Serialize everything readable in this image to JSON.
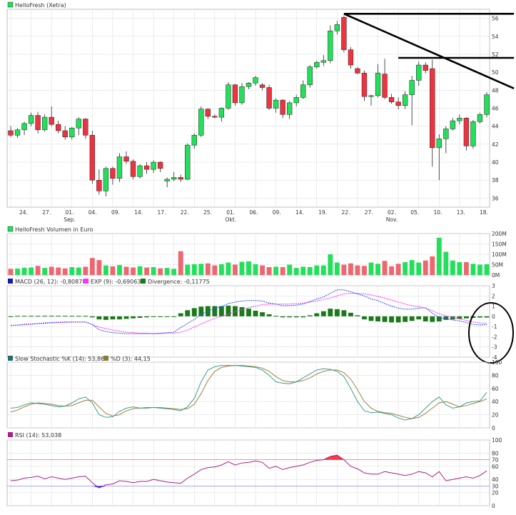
{
  "colors": {
    "up": "#22e05a",
    "down": "#ee3340",
    "candle_outline": "#222222",
    "macd": "#3355ff",
    "ema": "#ff33ff",
    "divergence": "#1a7a1a",
    "stoch_k": "#3aa08c",
    "stoch_d": "#a08040",
    "rsi": "#aa2288",
    "rsi_band_upper": "#ff6666",
    "rsi_band_lower": "#8888ff",
    "grid": "#d8d8d8"
  },
  "chart_data": [
    {
      "type": "candlestick",
      "title": "HelloFresh (Xetra)",
      "legend_icon_color": "#22e05a",
      "ylim": [
        35,
        57
      ],
      "yticks": [
        36,
        38,
        40,
        42,
        44,
        46,
        48,
        50,
        52,
        54,
        56
      ],
      "xticks": [
        "24.",
        "27.",
        "01.",
        "04.",
        "09.",
        "14.",
        "17.",
        "22.",
        "25.",
        "01.",
        "06.",
        "09.",
        "14.",
        "19.",
        "22.",
        "27.",
        "02.",
        "05.",
        "10.",
        "13.",
        "18."
      ],
      "month_labels": [
        {
          "label": "Sep.",
          "under_tick": 2
        },
        {
          "label": "Okt.",
          "under_tick": 9
        },
        {
          "label": "Nov.",
          "under_tick": 16
        }
      ],
      "candles": [
        [
          43.5,
          44.0,
          42.8,
          43.0
        ],
        [
          43.0,
          43.8,
          42.7,
          43.6
        ],
        [
          43.6,
          44.5,
          43.0,
          44.3
        ],
        [
          44.3,
          45.5,
          44.0,
          45.2
        ],
        [
          45.2,
          45.6,
          43.2,
          43.6
        ],
        [
          43.6,
          45.3,
          43.4,
          45.0
        ],
        [
          45.0,
          46.2,
          44.0,
          44.2
        ],
        [
          44.2,
          44.6,
          43.2,
          43.5
        ],
        [
          43.5,
          44.0,
          42.5,
          42.8
        ],
        [
          42.8,
          43.9,
          42.5,
          43.8
        ],
        [
          43.8,
          45.0,
          43.0,
          44.8
        ],
        [
          44.8,
          44.9,
          42.6,
          43.0
        ],
        [
          43.0,
          43.5,
          37.6,
          38.0
        ],
        [
          38.0,
          39.2,
          36.4,
          36.8
        ],
        [
          36.8,
          39.5,
          36.2,
          39.3
        ],
        [
          39.3,
          39.5,
          37.5,
          38.2
        ],
        [
          38.2,
          41.0,
          37.8,
          40.6
        ],
        [
          40.6,
          41.2,
          39.8,
          40.1
        ],
        [
          40.1,
          40.3,
          38.1,
          38.4
        ],
        [
          38.4,
          39.8,
          38.2,
          39.6
        ],
        [
          39.6,
          40.0,
          38.7,
          39.2
        ],
        [
          39.2,
          40.2,
          38.8,
          40.0
        ],
        [
          40.0,
          40.1,
          38.9,
          39.3
        ],
        [
          37.9,
          38.3,
          37.2,
          38.1
        ],
        [
          38.1,
          38.9,
          37.9,
          38.3
        ],
        [
          38.3,
          38.6,
          37.8,
          38.1
        ],
        [
          38.1,
          42.1,
          38.0,
          41.9
        ],
        [
          41.9,
          43.2,
          41.5,
          43.0
        ],
        [
          43.0,
          46.2,
          42.8,
          45.9
        ],
        [
          45.9,
          46.0,
          44.8,
          45.1
        ],
        [
          45.1,
          45.3,
          44.9,
          45.0
        ],
        [
          45.0,
          46.1,
          44.5,
          46.0
        ],
        [
          46.0,
          48.9,
          45.8,
          48.6
        ],
        [
          48.6,
          48.7,
          46.3,
          46.6
        ],
        [
          46.6,
          48.8,
          46.4,
          48.4
        ],
        [
          48.4,
          48.9,
          48.1,
          48.8
        ],
        [
          48.8,
          49.6,
          48.5,
          49.4
        ],
        [
          48.6,
          48.8,
          48.0,
          48.3
        ],
        [
          48.3,
          48.6,
          45.8,
          46.0
        ],
        [
          46.0,
          47.1,
          45.5,
          46.9
        ],
        [
          46.9,
          47.0,
          44.9,
          45.3
        ],
        [
          45.3,
          46.8,
          44.8,
          46.6
        ],
        [
          46.6,
          47.5,
          46.2,
          47.2
        ],
        [
          47.2,
          49.1,
          47.0,
          48.6
        ],
        [
          48.6,
          50.8,
          48.3,
          50.6
        ],
        [
          50.6,
          51.3,
          50.4,
          51.1
        ],
        [
          51.1,
          51.9,
          50.7,
          51.3
        ],
        [
          51.3,
          55.2,
          51.0,
          54.6
        ],
        [
          54.6,
          55.7,
          54.2,
          55.3
        ],
        [
          56.1,
          56.3,
          52.2,
          52.5
        ],
        [
          52.5,
          52.8,
          50.4,
          50.8
        ],
        [
          50.4,
          50.6,
          49.8,
          49.9
        ],
        [
          49.9,
          50.2,
          46.8,
          47.3
        ],
        [
          47.3,
          47.5,
          46.3,
          47.4
        ],
        [
          47.4,
          50.9,
          47.2,
          49.9
        ],
        [
          49.8,
          51.5,
          47.0,
          47.2
        ],
        [
          47.2,
          47.6,
          46.5,
          46.7
        ],
        [
          46.7,
          47.2,
          45.9,
          46.3
        ],
        [
          46.3,
          47.9,
          45.9,
          47.5
        ],
        [
          47.5,
          49.6,
          44.1,
          49.1
        ],
        [
          49.1,
          51.2,
          48.5,
          50.8
        ],
        [
          50.8,
          51.1,
          49.9,
          50.2
        ],
        [
          50.4,
          51.4,
          39.5,
          41.6
        ],
        [
          41.6,
          43.1,
          38.0,
          42.6
        ],
        [
          42.6,
          44.0,
          41.0,
          43.7
        ],
        [
          43.7,
          44.9,
          43.5,
          44.6
        ],
        [
          44.6,
          45.3,
          44.2,
          44.9
        ],
        [
          44.9,
          45.0,
          41.3,
          41.8
        ],
        [
          41.8,
          44.7,
          41.5,
          44.5
        ],
        [
          44.5,
          45.5,
          44.3,
          45.3
        ],
        [
          45.3,
          47.8,
          45.0,
          47.5
        ]
      ],
      "trend_lines": [
        {
          "from": [
            49,
            56.5
          ],
          "to": [
            74,
            56.5
          ]
        },
        {
          "from": [
            57,
            51.6
          ],
          "to": [
            74,
            51.6
          ]
        },
        {
          "from": [
            49,
            56.5
          ],
          "to": [
            74,
            48.2
          ]
        }
      ]
    },
    {
      "type": "bar",
      "title": "HelloFresh Volumen in Euro",
      "legend_icon_color": "#22e05a",
      "ylim": [
        0,
        200
      ],
      "yticks": [
        0,
        50,
        100,
        150,
        200
      ],
      "ytick_labels": [
        "0M",
        "50M",
        "100M",
        "150M",
        "200M"
      ],
      "values": [
        30,
        31,
        35,
        36,
        44,
        34,
        40,
        36,
        32,
        38,
        36,
        40,
        82,
        72,
        46,
        42,
        48,
        40,
        36,
        42,
        36,
        38,
        32,
        34,
        30,
        115,
        50,
        52,
        54,
        56,
        46,
        52,
        60,
        50,
        64,
        66,
        52,
        46,
        38,
        40,
        38,
        50,
        34,
        40,
        38,
        46,
        46,
        100,
        60,
        50,
        56,
        46,
        44,
        60,
        54,
        68,
        42,
        54,
        62,
        72,
        60,
        70,
        90,
        180,
        112,
        70,
        62,
        62,
        54,
        50,
        52
      ]
    },
    {
      "type": "line",
      "title_parts": [
        "MACD (26, 12): -0,80878",
        "EXP (9): -0,69063",
        "Divergence: -0,11775"
      ],
      "ylim": [
        -4,
        3
      ],
      "yticks": [
        3,
        2,
        1,
        0,
        -1,
        -2,
        -3,
        -4
      ],
      "series": [
        {
          "name": "MACD (26, 12): -0,80878",
          "values": [
            -0.9,
            -0.85,
            -0.78,
            -0.75,
            -0.7,
            -0.65,
            -0.6,
            -0.58,
            -0.55,
            -0.55,
            -0.55,
            -0.55,
            -0.8,
            -1.3,
            -1.5,
            -1.6,
            -1.65,
            -1.7,
            -1.7,
            -1.7,
            -1.7,
            -1.7,
            -1.65,
            -1.6,
            -1.55,
            -1.1,
            -0.7,
            -0.3,
            0.2,
            0.5,
            0.75,
            0.95,
            1.25,
            1.4,
            1.5,
            1.55,
            1.55,
            1.5,
            1.3,
            1.2,
            1.05,
            1.05,
            1.1,
            1.2,
            1.45,
            1.7,
            1.9,
            2.25,
            2.6,
            2.6,
            2.4,
            2.2,
            2.0,
            1.7,
            1.55,
            1.25,
            1.0,
            0.8,
            0.7,
            0.7,
            0.8,
            0.85,
            0.3,
            -0.1,
            -0.25,
            -0.35,
            -0.45,
            -0.6,
            -0.8,
            -0.85,
            -0.8
          ]
        },
        {
          "name": "EXP (9): -0,69063",
          "values": [
            -0.9,
            -0.88,
            -0.82,
            -0.78,
            -0.73,
            -0.7,
            -0.65,
            -0.62,
            -0.6,
            -0.58,
            -0.57,
            -0.57,
            -0.8,
            -1.05,
            -1.2,
            -1.35,
            -1.45,
            -1.55,
            -1.6,
            -1.65,
            -1.65,
            -1.7,
            -1.7,
            -1.65,
            -1.65,
            -1.55,
            -1.35,
            -1.05,
            -0.75,
            -0.45,
            -0.2,
            0.0,
            0.2,
            0.45,
            0.65,
            0.85,
            1.0,
            1.15,
            1.2,
            1.2,
            1.2,
            1.2,
            1.25,
            1.3,
            1.4,
            1.5,
            1.65,
            1.8,
            2.0,
            2.2,
            2.25,
            2.25,
            2.2,
            2.1,
            1.95,
            1.8,
            1.6,
            1.4,
            1.2,
            1.05,
            0.95,
            0.8,
            0.55,
            0.25,
            0.05,
            -0.1,
            -0.25,
            -0.4,
            -0.55,
            -0.65,
            -0.69
          ]
        },
        {
          "name": "Divergence: -0,11775",
          "type": "bar",
          "values": [
            0.0,
            0.05,
            0.05,
            0.05,
            0.05,
            0.06,
            0.06,
            0.06,
            0.06,
            0.05,
            0.05,
            0.05,
            -0.1,
            -0.3,
            -0.35,
            -0.3,
            -0.3,
            -0.25,
            -0.2,
            -0.15,
            -0.1,
            -0.05,
            -0.05,
            -0.05,
            -0.05,
            0.3,
            0.6,
            0.8,
            0.95,
            1.0,
            1.0,
            1.0,
            1.05,
            1.0,
            0.9,
            0.75,
            0.55,
            0.4,
            0.2,
            0.05,
            -0.1,
            -0.1,
            -0.1,
            -0.1,
            0.1,
            0.3,
            0.5,
            0.75,
            0.7,
            0.6,
            0.35,
            0.1,
            -0.3,
            -0.45,
            -0.5,
            -0.55,
            -0.6,
            -0.6,
            -0.55,
            -0.45,
            -0.3,
            -0.5,
            -0.55,
            -0.5,
            -0.35,
            -0.3,
            -0.25,
            -0.2,
            -0.15,
            -0.12,
            -0.12
          ]
        }
      ],
      "annotation": {
        "shape": "ellipse",
        "center": [
          68.5,
          -1.9
        ],
        "radius_x": 4.6,
        "radius_y": 4.2
      }
    },
    {
      "type": "line",
      "title_parts": [
        "Slow Stochastic %K (14): 53,867",
        "%D (3): 44,15"
      ],
      "ylim": [
        0,
        100
      ],
      "yticks": [
        0,
        20,
        40,
        60,
        80,
        100
      ],
      "series": [
        {
          "name": "Slow Stochastic %K (14): 53,867",
          "values": [
            30,
            31,
            35,
            38,
            37,
            36,
            34,
            32,
            33,
            38,
            44,
            47,
            38,
            20,
            16,
            17,
            25,
            30,
            32,
            30,
            30,
            31,
            30,
            29,
            28,
            26,
            32,
            45,
            70,
            88,
            93,
            95,
            95,
            95,
            94,
            93,
            92,
            88,
            80,
            70,
            68,
            67,
            70,
            76,
            82,
            88,
            90,
            89,
            86,
            78,
            60,
            40,
            26,
            23,
            24,
            22,
            20,
            15,
            12,
            14,
            20,
            30,
            40,
            47,
            35,
            30,
            32,
            38,
            40,
            41,
            54
          ]
        },
        {
          "name": "%D (3): 44,15",
          "values": [
            24,
            27,
            32,
            36,
            38,
            37,
            36,
            34,
            33,
            34,
            38,
            42,
            42,
            32,
            22,
            18,
            20,
            26,
            29,
            30,
            31,
            31,
            31,
            30,
            29,
            28,
            29,
            36,
            52,
            72,
            86,
            92,
            94,
            95,
            95,
            94,
            93,
            91,
            86,
            78,
            72,
            70,
            70,
            72,
            76,
            82,
            86,
            88,
            88,
            84,
            74,
            58,
            40,
            30,
            25,
            23,
            22,
            19,
            16,
            14,
            16,
            22,
            30,
            38,
            40,
            36,
            32,
            34,
            37,
            40,
            44
          ]
        }
      ]
    },
    {
      "type": "line",
      "title": "RSI (14): 53,038",
      "ylim": [
        0,
        100
      ],
      "yticks": [
        0,
        20,
        30,
        40,
        60,
        70,
        80,
        100
      ],
      "band_labels": [
        "70",
        "30"
      ],
      "series": [
        {
          "name": "RSI (14): 53,038",
          "values": [
            38,
            39,
            42,
            43,
            45,
            41,
            44,
            42,
            40,
            42,
            44,
            45,
            35,
            27,
            32,
            33,
            38,
            37,
            35,
            37,
            37,
            40,
            38,
            36,
            35,
            34,
            42,
            48,
            55,
            58,
            59,
            62,
            67,
            62,
            65,
            66,
            68,
            66,
            57,
            60,
            55,
            58,
            60,
            62,
            66,
            69,
            70,
            75,
            77,
            70,
            60,
            56,
            50,
            48,
            48,
            52,
            50,
            48,
            46,
            48,
            52,
            50,
            44,
            52,
            38,
            40,
            42,
            44,
            42,
            46,
            53
          ]
        }
      ]
    }
  ]
}
